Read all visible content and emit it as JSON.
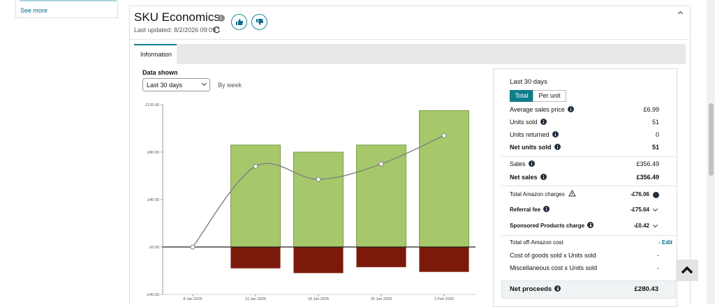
{
  "sidebar": {
    "link": "See more"
  },
  "header": {
    "title": "SKU Economics",
    "last_updated": "Last updated: 8/2/2026 09:09"
  },
  "tabs": [
    "Information"
  ],
  "controls": {
    "label": "Data shown",
    "select": "Last 30 days",
    "period": "By week"
  },
  "chart_data": {
    "type": "bar",
    "categories": [
      "8 Jan 2026",
      "11 Jan 2026",
      "18 Jan 2026",
      "25 Jan 2026",
      "1 Feb 2026"
    ],
    "series": [
      {
        "color": "#a6c86b",
        "values": [
          0,
          86,
          80,
          86,
          115
        ]
      },
      {
        "color": "#7b1a0a",
        "values": [
          0,
          -18,
          -22,
          -17,
          -21
        ]
      },
      {
        "type": "line",
        "color": "#808080",
        "values": [
          0,
          68,
          57,
          70,
          94
        ]
      }
    ],
    "ylim": [
      -40,
      120
    ],
    "yticks": [
      {
        "value": -40,
        "label": "-£40.00"
      },
      {
        "value": 0,
        "label": "£0.00"
      },
      {
        "value": 40,
        "label": "£40.00"
      },
      {
        "value": 80,
        "label": "£80.00"
      },
      {
        "value": 120,
        "label": "£120.00"
      }
    ],
    "grid": false
  },
  "summary": {
    "title": "Last 30 days",
    "toggle": [
      "Total",
      "Per unit"
    ],
    "rows": [
      {
        "label": "Average sales price",
        "value": "£6.99"
      },
      {
        "label": "Units sold",
        "value": "51"
      },
      {
        "label": "Units returned",
        "value": "0"
      },
      {
        "label": "Net units sold",
        "value": "51"
      },
      {
        "label": "Sales",
        "value": "£356.49"
      },
      {
        "label": "Net sales",
        "value": "£356.49"
      },
      {
        "label": "Total Amazon charges",
        "value": "-£76.06"
      },
      {
        "label": "Referral fee",
        "value": "-£75.64"
      },
      {
        "label": "Sponsored Products charge",
        "value": "-£0.42"
      },
      {
        "label": "Total off-Amazon cost",
        "value": "- Edit"
      },
      {
        "label": "Cost of goods sold x Units sold",
        "value": "-"
      },
      {
        "label": "Miscellaneous cost x Units sold",
        "value": "-"
      },
      {
        "label": "Net proceeds",
        "value": "£280.43"
      }
    ]
  }
}
